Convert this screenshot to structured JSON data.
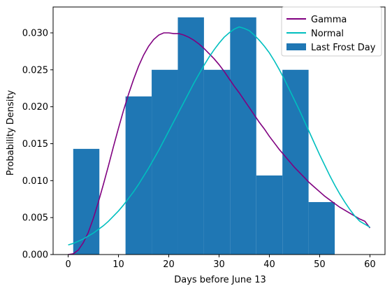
{
  "chart_data": {
    "type": "bar",
    "xlabel": "Days before June 13",
    "ylabel": "Probability Density",
    "xlim": [
      -3,
      63
    ],
    "ylim": [
      0,
      0.0335
    ],
    "grid": false,
    "legend_placement": "top-right",
    "x_ticks": [
      0,
      10,
      20,
      30,
      40,
      50,
      60
    ],
    "x_tick_labels": [
      "0",
      "10",
      "20",
      "30",
      "40",
      "50",
      "60"
    ],
    "y_ticks": [
      0.0,
      0.005,
      0.01,
      0.015,
      0.02,
      0.025,
      0.03
    ],
    "y_tick_labels": [
      "0.000",
      "0.005",
      "0.010",
      "0.015",
      "0.020",
      "0.025",
      "0.030"
    ],
    "histogram": {
      "name": "Last Frost Day",
      "color": "#1f77b4",
      "bins": [
        {
          "x0": 1.0,
          "x1": 6.2,
          "density": 0.0143
        },
        {
          "x0": 6.2,
          "x1": 11.4,
          "density": 0.0
        },
        {
          "x0": 11.4,
          "x1": 16.6,
          "density": 0.0214
        },
        {
          "x0": 16.6,
          "x1": 21.8,
          "density": 0.025
        },
        {
          "x0": 21.8,
          "x1": 27.0,
          "density": 0.0321
        },
        {
          "x0": 27.0,
          "x1": 32.2,
          "density": 0.025
        },
        {
          "x0": 32.2,
          "x1": 37.4,
          "density": 0.0321
        },
        {
          "x0": 37.4,
          "x1": 42.6,
          "density": 0.0107
        },
        {
          "x0": 42.6,
          "x1": 47.8,
          "density": 0.025
        },
        {
          "x0": 47.8,
          "x1": 53.0,
          "density": 0.0071
        }
      ]
    },
    "series": [
      {
        "name": "Gamma",
        "type": "line",
        "color": "#800080",
        "x": [
          0,
          1,
          2,
          3,
          4,
          5,
          6,
          7,
          8,
          9,
          10,
          11,
          12,
          13,
          14,
          15,
          16,
          17,
          18,
          19,
          20,
          21,
          22,
          23,
          24,
          25,
          26,
          27,
          28,
          29,
          30,
          31,
          32,
          33,
          34,
          35,
          36,
          37,
          38,
          39,
          40,
          41,
          42,
          43,
          44,
          45,
          46,
          47,
          48,
          49,
          50,
          51,
          52,
          53,
          54,
          55,
          56,
          57,
          58,
          59,
          60
        ],
        "y": [
          0.0,
          0.0001,
          0.0006,
          0.0016,
          0.003,
          0.0049,
          0.0071,
          0.0095,
          0.012,
          0.0146,
          0.0171,
          0.0195,
          0.0217,
          0.0237,
          0.0255,
          0.027,
          0.0282,
          0.0291,
          0.0297,
          0.03,
          0.03,
          0.0299,
          0.0299,
          0.0297,
          0.0294,
          0.029,
          0.0285,
          0.0279,
          0.0272,
          0.0265,
          0.0257,
          0.0248,
          0.0238,
          0.0228,
          0.0219,
          0.0209,
          0.0199,
          0.0189,
          0.0179,
          0.017,
          0.016,
          0.0151,
          0.0142,
          0.0134,
          0.0126,
          0.0118,
          0.0111,
          0.0104,
          0.0097,
          0.0091,
          0.0085,
          0.0079,
          0.0074,
          0.0069,
          0.0064,
          0.006,
          0.0056,
          0.0052,
          0.0048,
          0.0045,
          0.0036
        ]
      },
      {
        "name": "Normal",
        "type": "line",
        "color": "#00bfbf",
        "x": [
          0,
          1,
          2,
          3,
          4,
          5,
          6,
          7,
          8,
          9,
          10,
          11,
          12,
          13,
          14,
          15,
          16,
          17,
          18,
          19,
          20,
          21,
          22,
          23,
          24,
          25,
          26,
          27,
          28,
          29,
          30,
          31,
          32,
          33,
          34,
          35,
          36,
          37,
          38,
          39,
          40,
          41,
          42,
          43,
          44,
          45,
          46,
          47,
          48,
          49,
          50,
          51,
          52,
          53,
          54,
          55,
          56,
          57,
          58,
          59,
          60
        ],
        "y": [
          0.0013,
          0.0015,
          0.0018,
          0.0021,
          0.0025,
          0.0029,
          0.0034,
          0.0039,
          0.0045,
          0.0052,
          0.0059,
          0.0067,
          0.0076,
          0.0085,
          0.0095,
          0.0106,
          0.0117,
          0.0129,
          0.0141,
          0.0154,
          0.0167,
          0.018,
          0.0193,
          0.0206,
          0.0219,
          0.0232,
          0.0244,
          0.0256,
          0.0267,
          0.0277,
          0.0286,
          0.0294,
          0.03,
          0.0305,
          0.0308,
          0.0306,
          0.0303,
          0.0297,
          0.029,
          0.0282,
          0.0273,
          0.0262,
          0.025,
          0.0237,
          0.0223,
          0.0209,
          0.0195,
          0.018,
          0.0165,
          0.015,
          0.0135,
          0.0121,
          0.0107,
          0.0094,
          0.0082,
          0.0071,
          0.0061,
          0.0052,
          0.0045,
          0.0041,
          0.0037
        ]
      }
    ]
  }
}
